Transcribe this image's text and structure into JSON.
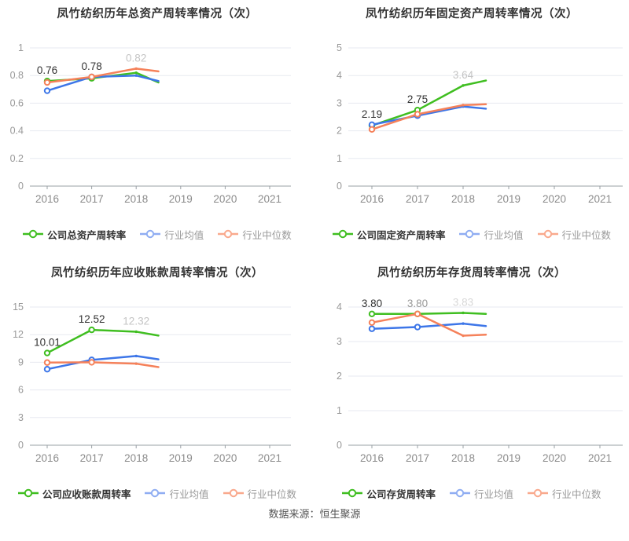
{
  "page": {
    "background": "#ffffff"
  },
  "footer": {
    "source": "数据来源：恒生聚源"
  },
  "colors": {
    "company_line": "#3fbe20",
    "industry_mean_line": "#3d76e8",
    "industry_median_line": "#f5815a",
    "industry_mean_legend": "#8fadf2",
    "industry_median_legend": "#f9a98d",
    "grid": "#e7eaf0",
    "axis": "#9aa0a6",
    "tick_label": "#999999",
    "title": "#333333"
  },
  "chart_data": [
    {
      "type": "line",
      "title": "凤竹纺织历年总资产周转率情况（次）",
      "x_ticks": [
        "2016",
        "2017",
        "2018",
        "2019",
        "2020",
        "2021"
      ],
      "x_points": [
        2016,
        2017,
        2018,
        2018.5
      ],
      "ylim": [
        0,
        1
      ],
      "y_step": 0.2,
      "y_tick_labels": [
        "0",
        "0.2",
        "0.4",
        "0.6",
        "0.8",
        "1"
      ],
      "grid": true,
      "legend_position": "bottom",
      "series": [
        {
          "name": "公司总资产周转率",
          "color": "#3fbe20",
          "legend_color": "#3fbe20",
          "values": [
            0.76,
            0.78,
            0.82,
            0.75
          ]
        },
        {
          "name": "行业均值",
          "color": "#3d76e8",
          "legend_color": "#8fadf2",
          "values": [
            0.69,
            0.79,
            0.8,
            0.76
          ]
        },
        {
          "name": "行业中位数",
          "color": "#f5815a",
          "legend_color": "#f9a98d",
          "values": [
            0.75,
            0.79,
            0.85,
            0.83
          ]
        }
      ],
      "point_labels": [
        {
          "text": "0.76",
          "color": "#333333"
        },
        {
          "text": "0.78",
          "color": "#333333"
        },
        {
          "text": "0.82",
          "color": "#c4c4c4"
        }
      ]
    },
    {
      "type": "line",
      "title": "凤竹纺织历年固定资产周转率情况（次）",
      "x_ticks": [
        "2016",
        "2017",
        "2018",
        "2019",
        "2020",
        "2021"
      ],
      "x_points": [
        2016,
        2017,
        2018,
        2018.5
      ],
      "ylim": [
        0,
        5
      ],
      "y_step": 1,
      "y_tick_labels": [
        "0",
        "1",
        "2",
        "3",
        "4",
        "5"
      ],
      "grid": true,
      "legend_position": "bottom",
      "series": [
        {
          "name": "公司固定资产周转率",
          "color": "#3fbe20",
          "legend_color": "#3fbe20",
          "values": [
            2.19,
            2.75,
            3.64,
            3.82
          ]
        },
        {
          "name": "行业均值",
          "color": "#3d76e8",
          "legend_color": "#8fadf2",
          "values": [
            2.22,
            2.55,
            2.88,
            2.8
          ]
        },
        {
          "name": "行业中位数",
          "color": "#f5815a",
          "legend_color": "#f9a98d",
          "values": [
            2.05,
            2.6,
            2.93,
            2.96
          ]
        }
      ],
      "point_labels": [
        {
          "text": "2.19",
          "color": "#333333"
        },
        {
          "text": "2.75",
          "color": "#333333"
        },
        {
          "text": "3.64",
          "color": "#c4c4c4"
        }
      ]
    },
    {
      "type": "line",
      "title": "凤竹纺织历年应收账款周转率情况（次）",
      "x_ticks": [
        "2016",
        "2017",
        "2018",
        "2019",
        "2020",
        "2021"
      ],
      "x_points": [
        2016,
        2017,
        2018,
        2018.5
      ],
      "ylim": [
        0,
        15
      ],
      "y_step": 3,
      "y_tick_labels": [
        "0",
        "3",
        "6",
        "9",
        "12",
        "15"
      ],
      "grid": true,
      "legend_position": "bottom",
      "series": [
        {
          "name": "公司应收账款周转率",
          "color": "#3fbe20",
          "legend_color": "#3fbe20",
          "values": [
            10.01,
            12.52,
            12.32,
            11.9
          ]
        },
        {
          "name": "行业均值",
          "color": "#3d76e8",
          "legend_color": "#8fadf2",
          "values": [
            8.25,
            9.26,
            9.68,
            9.32
          ]
        },
        {
          "name": "行业中位数",
          "color": "#f5815a",
          "legend_color": "#f9a98d",
          "values": [
            8.97,
            9.0,
            8.85,
            8.48
          ]
        }
      ],
      "point_labels": [
        {
          "text": "10.01",
          "color": "#333333"
        },
        {
          "text": "12.52",
          "color": "#333333"
        },
        {
          "text": "12.32",
          "color": "#c4c4c4"
        }
      ]
    },
    {
      "type": "line",
      "title": "凤竹纺织历年存货周转率情况（次）",
      "x_ticks": [
        "2016",
        "2017",
        "2018",
        "2019",
        "2020",
        "2021"
      ],
      "x_points": [
        2016,
        2017,
        2018,
        2018.5
      ],
      "ylim": [
        0,
        4
      ],
      "y_step": 1,
      "y_tick_labels": [
        "0",
        "1",
        "2",
        "3",
        "4"
      ],
      "grid": true,
      "legend_position": "bottom",
      "series": [
        {
          "name": "公司存货周转率",
          "color": "#3fbe20",
          "legend_color": "#3fbe20",
          "values": [
            3.8,
            3.8,
            3.83,
            3.8
          ]
        },
        {
          "name": "行业均值",
          "color": "#3d76e8",
          "legend_color": "#8fadf2",
          "values": [
            3.37,
            3.42,
            3.52,
            3.45
          ]
        },
        {
          "name": "行业中位数",
          "color": "#f5815a",
          "legend_color": "#f9a98d",
          "values": [
            3.55,
            3.8,
            3.17,
            3.2
          ]
        }
      ],
      "point_labels": [
        {
          "text": "3.80",
          "color": "#333333"
        },
        {
          "text": "3.80",
          "color": "#999999"
        },
        {
          "text": "3.83",
          "color": "#d8d8d8"
        }
      ]
    }
  ]
}
